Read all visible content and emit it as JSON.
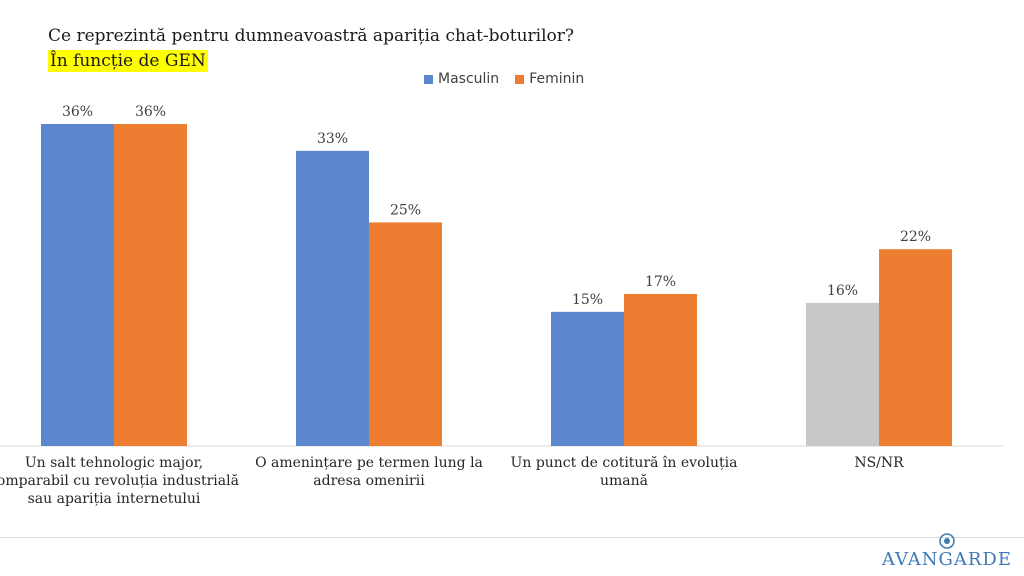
{
  "chart_data": {
    "type": "bar",
    "title": "Ce reprezintă pentru dumneavoastră apariția chat-boturilor?",
    "subtitle": "În funcție de GEN",
    "categories": [
      "Un salt tehnologic major, comparabil cu revoluția industrială sau apariția internetului",
      "O amenințare pe termen lung la adresa omenirii",
      "Un punct de cotitură în evoluția umană",
      "NS/NR"
    ],
    "series": [
      {
        "name": "Masculin",
        "color": "#5b87cf",
        "values": [
          36,
          33,
          15,
          16
        ],
        "labels": [
          "36%",
          "33%",
          "15%",
          "16%"
        ]
      },
      {
        "name": "Feminin",
        "color": "#ed7d31",
        "values": [
          36,
          25,
          17,
          22
        ],
        "labels": [
          "36%",
          "25%",
          "17%",
          "22%"
        ]
      }
    ],
    "special_colors": {
      "NS/NR Masculin": "#c8c8c8"
    },
    "ylim": [
      0,
      36
    ],
    "legend_position": "top-center",
    "grid": false
  },
  "logo": {
    "text": "AVANGARDE"
  }
}
